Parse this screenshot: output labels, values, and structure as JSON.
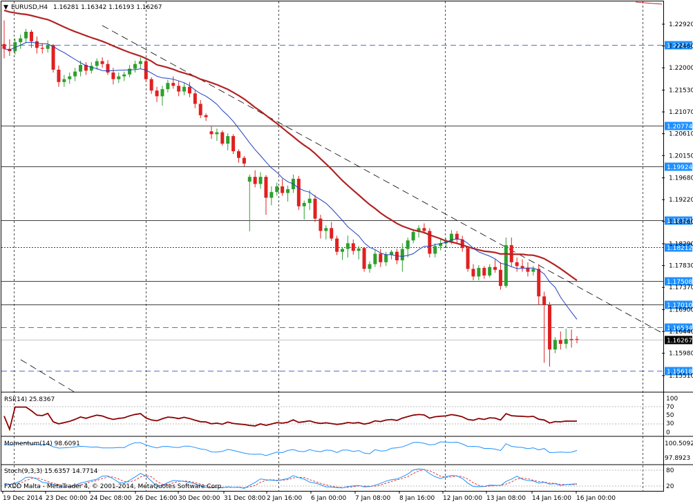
{
  "header": {
    "symbol": "EURUSD,H4",
    "ohlc": "1.16281 1.16342 1.16193 1.16267"
  },
  "price_axis": {
    "ticks": [
      "1.22920",
      "1.22460",
      "1.22000",
      "1.21530",
      "1.21070",
      "1.20610",
      "1.20150",
      "1.19680",
      "1.19220",
      "1.18760",
      "1.18290",
      "1.17830",
      "1.17370",
      "1.16900",
      "1.16440",
      "1.15980",
      "1.15510"
    ]
  },
  "levels": [
    {
      "label": "1.22483",
      "style": "dashed"
    },
    {
      "label": "1.20774",
      "style": "solid"
    },
    {
      "label": "1.19924",
      "style": "solid"
    },
    {
      "label": "1.18781",
      "style": "solid"
    },
    {
      "label": "1.18212",
      "style": "dotted"
    },
    {
      "label": "1.17508",
      "style": "solid"
    },
    {
      "label": "1.17010",
      "style": "solid"
    },
    {
      "label": "1.16534",
      "style": "dashed"
    },
    {
      "label": "1.15618",
      "style": "dashed"
    }
  ],
  "current_price": "1.16267",
  "time_axis": {
    "labels": [
      "19 Dec 2014",
      "23 Dec 00:00",
      "24 Dec 08:00",
      "26 Dec 16:00",
      "30 Dec 00:00",
      "31 Dec 08:00",
      "2 Jan 16:00",
      "6 Jan 00:00",
      "7 Jan 08:00",
      "8 Jan 16:00",
      "12 Jan 00:00",
      "13 Jan 08:00",
      "14 Jan 16:00",
      "16 Jan 00:00"
    ]
  },
  "rsi": {
    "title": "RSI(14) 25.8367",
    "ticks": [
      "100",
      "70",
      "50",
      "30",
      "0"
    ]
  },
  "momentum": {
    "title": "Momentum(14) 98.6091",
    "ticks": [
      "100.5092",
      "97.8923"
    ]
  },
  "stoch": {
    "title": "Stoch(9,3,3) 15.6357 14.7714",
    "ticks": [
      "80",
      "20"
    ]
  },
  "footer": "FXDD Malta - MetaTrader 4, © 2001-2014, MetaQuotes Software Corp.",
  "colors": {
    "bull": "#2e9f2e",
    "bear": "#e02020",
    "ma_fast": "#1f3fbf",
    "ma_slow": "#b22222",
    "rsi": "#8b0000",
    "momentum": "#1e90ff",
    "stoch_main": "#1e90ff",
    "stoch_signal": "#e02020",
    "label_bg": "#1e90ff"
  },
  "chart_data": {
    "type": "candlestick",
    "title": "EURUSD,H4",
    "ylim": [
      1.1551,
      1.2316
    ],
    "candles": [
      [
        1.225,
        1.23,
        1.222,
        1.224
      ],
      [
        1.224,
        1.226,
        1.2225,
        1.2235
      ],
      [
        1.2235,
        1.2262,
        1.2228,
        1.2254
      ],
      [
        1.2254,
        1.227,
        1.224,
        1.2262
      ],
      [
        1.2262,
        1.2282,
        1.2252,
        1.2276
      ],
      [
        1.2276,
        1.228,
        1.2242,
        1.2256
      ],
      [
        1.2256,
        1.2266,
        1.223,
        1.2242
      ],
      [
        1.2242,
        1.2252,
        1.223,
        1.224
      ],
      [
        1.224,
        1.2258,
        1.2232,
        1.2248
      ],
      [
        1.2248,
        1.225,
        1.219,
        1.2196
      ],
      [
        1.2196,
        1.2205,
        1.216,
        1.217
      ],
      [
        1.217,
        1.2185,
        1.216,
        1.2176
      ],
      [
        1.2176,
        1.219,
        1.2166,
        1.2182
      ],
      [
        1.2182,
        1.22,
        1.2172,
        1.2192
      ],
      [
        1.2192,
        1.2215,
        1.2182,
        1.2206
      ],
      [
        1.2206,
        1.2212,
        1.2185,
        1.2194
      ],
      [
        1.2194,
        1.2212,
        1.2188,
        1.2204
      ],
      [
        1.2204,
        1.222,
        1.2196,
        1.2214
      ],
      [
        1.2214,
        1.2222,
        1.22,
        1.2208
      ],
      [
        1.2208,
        1.2216,
        1.2185,
        1.219
      ],
      [
        1.219,
        1.22,
        1.2165,
        1.2176
      ],
      [
        1.2176,
        1.219,
        1.2168,
        1.2182
      ],
      [
        1.2182,
        1.2192,
        1.2172,
        1.2186
      ],
      [
        1.2186,
        1.2206,
        1.218,
        1.2198
      ],
      [
        1.2198,
        1.2215,
        1.219,
        1.2208
      ],
      [
        1.2208,
        1.2222,
        1.2198,
        1.2214
      ],
      [
        1.2214,
        1.222,
        1.217,
        1.2176
      ],
      [
        1.2176,
        1.218,
        1.2145,
        1.2152
      ],
      [
        1.2152,
        1.216,
        1.2128,
        1.214
      ],
      [
        1.214,
        1.2162,
        1.212,
        1.2155
      ],
      [
        1.2155,
        1.2175,
        1.2148,
        1.2168
      ],
      [
        1.2168,
        1.2182,
        1.2156,
        1.2162
      ],
      [
        1.2162,
        1.2172,
        1.214,
        1.215
      ],
      [
        1.215,
        1.2168,
        1.2142,
        1.216
      ],
      [
        1.216,
        1.217,
        1.2138,
        1.2146
      ],
      [
        1.2146,
        1.2152,
        1.2115,
        1.2124
      ],
      [
        1.2124,
        1.2132,
        1.2094,
        1.21
      ],
      [
        1.21,
        1.2104,
        1.2088,
        1.2096
      ],
      [
        1.2066,
        1.2078,
        1.205,
        1.206
      ],
      [
        1.206,
        1.2072,
        1.2046,
        1.2064
      ],
      [
        1.2064,
        1.2068,
        1.2036,
        1.204
      ],
      [
        1.204,
        1.2062,
        1.2026,
        1.2056
      ],
      [
        1.2056,
        1.206,
        1.2018,
        1.2024
      ],
      [
        1.2024,
        1.2028,
        1.2,
        1.201
      ],
      [
        1.201,
        1.2014,
        1.1992,
        1.1998
      ],
      [
        1.196,
        1.1975,
        1.1855,
        1.197
      ],
      [
        1.197,
        1.1984,
        1.1948,
        1.1955
      ],
      [
        1.1955,
        1.198,
        1.1945,
        1.197
      ],
      [
        1.197,
        1.1974,
        1.189,
        1.1926
      ],
      [
        1.1926,
        1.195,
        1.191,
        1.1938
      ],
      [
        1.1938,
        1.1958,
        1.193,
        1.195
      ],
      [
        1.195,
        1.1966,
        1.193,
        1.1936
      ],
      [
        1.1936,
        1.1952,
        1.1918,
        1.1944
      ],
      [
        1.1944,
        1.1975,
        1.1936,
        1.1966
      ],
      [
        1.1966,
        1.1972,
        1.19,
        1.1908
      ],
      [
        1.1908,
        1.192,
        1.188,
        1.1915
      ],
      [
        1.1915,
        1.1942,
        1.19,
        1.1924
      ],
      [
        1.1924,
        1.1932,
        1.1875,
        1.1882
      ],
      [
        1.1882,
        1.189,
        1.184,
        1.1856
      ],
      [
        1.1856,
        1.1868,
        1.1838,
        1.1862
      ],
      [
        1.1862,
        1.1875,
        1.1835,
        1.184
      ],
      [
        1.184,
        1.1846,
        1.1805,
        1.1812
      ],
      [
        1.1812,
        1.1822,
        1.1795,
        1.1818
      ],
      [
        1.1818,
        1.1846,
        1.18,
        1.183
      ],
      [
        1.183,
        1.1838,
        1.1806,
        1.1814
      ],
      [
        1.1814,
        1.1824,
        1.1796,
        1.1819
      ],
      [
        1.182,
        1.1822,
        1.177,
        1.1776
      ],
      [
        1.1776,
        1.1792,
        1.1768,
        1.1786
      ],
      [
        1.1786,
        1.1816,
        1.178,
        1.1808
      ],
      [
        1.1808,
        1.1818,
        1.178,
        1.179
      ],
      [
        1.179,
        1.1812,
        1.1782,
        1.1806
      ],
      [
        1.1806,
        1.1816,
        1.1796,
        1.1812
      ],
      [
        1.1812,
        1.1818,
        1.1786,
        1.1794
      ],
      [
        1.1794,
        1.183,
        1.177,
        1.1818
      ],
      [
        1.1818,
        1.1842,
        1.18,
        1.1836
      ],
      [
        1.1836,
        1.186,
        1.183,
        1.1854
      ],
      [
        1.1854,
        1.1868,
        1.1842,
        1.1862
      ],
      [
        1.1862,
        1.1872,
        1.185,
        1.1856
      ],
      [
        1.1856,
        1.1862,
        1.18,
        1.1808
      ],
      [
        1.1808,
        1.183,
        1.18,
        1.1824
      ],
      [
        1.1824,
        1.184,
        1.1815,
        1.183
      ],
      [
        1.183,
        1.184,
        1.182,
        1.1834
      ],
      [
        1.1834,
        1.1858,
        1.1828,
        1.185
      ],
      [
        1.185,
        1.1856,
        1.183,
        1.1838
      ],
      [
        1.1838,
        1.1846,
        1.1812,
        1.182
      ],
      [
        1.182,
        1.1824,
        1.177,
        1.1776
      ],
      [
        1.1776,
        1.1786,
        1.1752,
        1.176
      ],
      [
        1.176,
        1.1784,
        1.1752,
        1.1778
      ],
      [
        1.1778,
        1.1782,
        1.1755,
        1.1762
      ],
      [
        1.1762,
        1.1786,
        1.1758,
        1.178
      ],
      [
        1.178,
        1.1796,
        1.1768,
        1.1774
      ],
      [
        1.1774,
        1.179,
        1.1732,
        1.174
      ],
      [
        1.174,
        1.1842,
        1.1736,
        1.1826
      ],
      [
        1.1826,
        1.1842,
        1.178,
        1.179
      ],
      [
        1.179,
        1.18,
        1.177,
        1.1782
      ],
      [
        1.1782,
        1.1796,
        1.177,
        1.1778
      ],
      [
        1.1778,
        1.179,
        1.176,
        1.177
      ],
      [
        1.177,
        1.1782,
        1.1762,
        1.1776
      ],
      [
        1.1776,
        1.1786,
        1.17,
        1.1718
      ],
      [
        1.1718,
        1.1728,
        1.1578,
        1.17
      ],
      [
        1.17,
        1.1706,
        1.157,
        1.1606
      ],
      [
        1.1606,
        1.1632,
        1.1598,
        1.1626
      ],
      [
        1.1626,
        1.1644,
        1.1606,
        1.1618
      ],
      [
        1.1618,
        1.165,
        1.1608,
        1.1628
      ],
      [
        1.1628,
        1.1648,
        1.161,
        1.1626
      ],
      [
        1.1628,
        1.1634,
        1.1619,
        1.1627
      ]
    ]
  }
}
